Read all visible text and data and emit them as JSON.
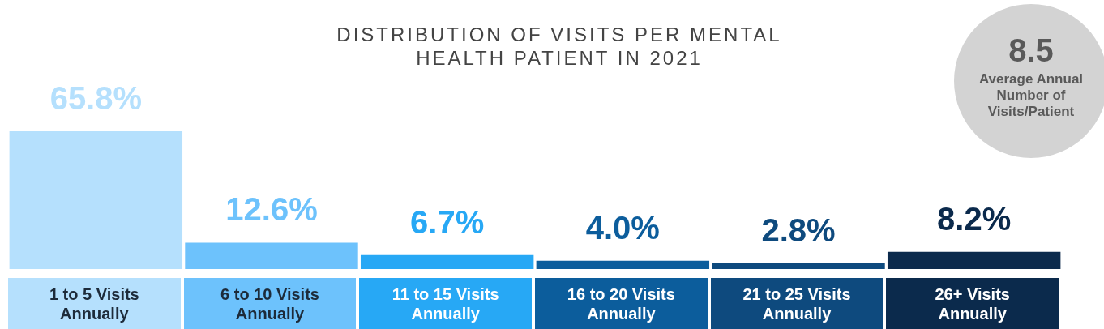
{
  "chart_data": {
    "type": "bar",
    "title": "DISTRIBUTION OF VISITS PER MENTAL HEALTH PATIENT IN 2021",
    "categories": [
      "1 to 5 Visits Annually",
      "6 to 10 Visits Annually",
      "11 to 15 Visits Annually",
      "16 to 20 Visits Annually",
      "21 to 25 Visits Annually",
      "26+ Visits Annually"
    ],
    "values": [
      65.8,
      12.6,
      6.7,
      4.0,
      2.8,
      8.2
    ],
    "value_labels": [
      "65.8%",
      "12.6%",
      "6.7%",
      "4.0%",
      "2.8%",
      "8.2%"
    ],
    "colors": [
      "#b5e0fd",
      "#6dc2fc",
      "#27a8f5",
      "#0c5d9c",
      "#0e4a7e",
      "#0b2a4c"
    ],
    "annotations": [
      "8.5",
      "Average Annual Number of Visits/Patient"
    ]
  }
}
